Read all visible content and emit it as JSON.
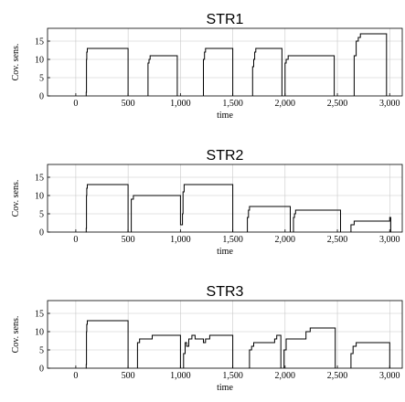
{
  "chart_data": [
    {
      "type": "line",
      "title": "STR1",
      "xlabel": "time",
      "ylabel": "Cov. sens.",
      "xlim": [
        -270,
        3120
      ],
      "ylim": [
        0,
        18.5
      ],
      "xticks": [
        0,
        500,
        1000,
        1500,
        2000,
        2500,
        3000
      ],
      "xtick_labels": [
        "0",
        "500",
        "1,000",
        "1,500",
        "2,000",
        "2,500",
        "3,000"
      ],
      "yticks": [
        0,
        5,
        10,
        15
      ],
      "ytick_labels": [
        "0",
        "5",
        "10",
        "15"
      ],
      "grid": true,
      "segments": [
        [
          [
            95,
            0
          ],
          [
            100,
            1
          ],
          [
            102,
            10
          ],
          [
            105,
            12
          ],
          [
            110,
            13
          ],
          [
            500,
            13
          ],
          [
            500,
            0
          ]
        ],
        [
          [
            690,
            0
          ],
          [
            690,
            9
          ],
          [
            700,
            10
          ],
          [
            710,
            11
          ],
          [
            970,
            11
          ],
          [
            970,
            0
          ]
        ],
        [
          [
            1220,
            0
          ],
          [
            1220,
            10
          ],
          [
            1230,
            12
          ],
          [
            1240,
            13
          ],
          [
            1500,
            13
          ],
          [
            1500,
            0
          ]
        ],
        [
          [
            1690,
            0
          ],
          [
            1690,
            8
          ],
          [
            1700,
            10
          ],
          [
            1710,
            12
          ],
          [
            1720,
            13
          ],
          [
            1970,
            13
          ],
          [
            1970,
            0
          ]
        ],
        [
          [
            2000,
            0
          ],
          [
            2000,
            9
          ],
          [
            2010,
            10
          ],
          [
            2030,
            11
          ],
          [
            2470,
            11
          ],
          [
            2470,
            0
          ]
        ],
        [
          [
            2660,
            0
          ],
          [
            2660,
            11
          ],
          [
            2680,
            15
          ],
          [
            2700,
            16
          ],
          [
            2720,
            17
          ],
          [
            2970,
            17
          ],
          [
            2970,
            0
          ]
        ]
      ]
    },
    {
      "type": "line",
      "title": "STR2",
      "xlabel": "time",
      "ylabel": "Cov. sens.",
      "xlim": [
        -270,
        3120
      ],
      "ylim": [
        0,
        18.5
      ],
      "xticks": [
        0,
        500,
        1000,
        1500,
        2000,
        2500,
        3000
      ],
      "xtick_labels": [
        "0",
        "500",
        "1,000",
        "1,500",
        "2,000",
        "2,500",
        "3,000"
      ],
      "yticks": [
        0,
        5,
        10,
        15
      ],
      "ytick_labels": [
        "0",
        "5",
        "10",
        "15"
      ],
      "grid": true,
      "segments": [
        [
          [
            95,
            0
          ],
          [
            100,
            1
          ],
          [
            102,
            10
          ],
          [
            105,
            12
          ],
          [
            110,
            13
          ],
          [
            500,
            13
          ],
          [
            500,
            0
          ]
        ],
        [
          [
            530,
            0
          ],
          [
            530,
            9
          ],
          [
            550,
            10
          ],
          [
            1000,
            10
          ],
          [
            1000,
            2
          ],
          [
            1020,
            5
          ],
          [
            1025,
            11
          ],
          [
            1035,
            13
          ],
          [
            1500,
            13
          ],
          [
            1500,
            0
          ]
        ],
        [
          [
            1640,
            0
          ],
          [
            1640,
            4
          ],
          [
            1650,
            6
          ],
          [
            1660,
            7
          ],
          [
            2050,
            7
          ],
          [
            2050,
            0
          ]
        ],
        [
          [
            2080,
            0
          ],
          [
            2080,
            4
          ],
          [
            2090,
            5
          ],
          [
            2100,
            6
          ],
          [
            2530,
            6
          ],
          [
            2530,
            0
          ]
        ],
        [
          [
            2630,
            0
          ],
          [
            2630,
            2
          ],
          [
            2660,
            3
          ],
          [
            3000,
            3
          ],
          [
            3000,
            4
          ],
          [
            3010,
            0
          ]
        ]
      ]
    },
    {
      "type": "line",
      "title": "STR3",
      "xlabel": "time",
      "ylabel": "Cov. sens.",
      "xlim": [
        -270,
        3120
      ],
      "ylim": [
        0,
        18.5
      ],
      "xticks": [
        0,
        500,
        1000,
        1500,
        2000,
        2500,
        3000
      ],
      "xtick_labels": [
        "0",
        "500",
        "1,000",
        "1,500",
        "2,000",
        "2,500",
        "3,000"
      ],
      "yticks": [
        0,
        5,
        10,
        15
      ],
      "ytick_labels": [
        "0",
        "5",
        "10",
        "15"
      ],
      "grid": true,
      "segments": [
        [
          [
            95,
            0
          ],
          [
            100,
            1
          ],
          [
            102,
            10
          ],
          [
            105,
            12
          ],
          [
            110,
            13
          ],
          [
            500,
            13
          ],
          [
            500,
            0
          ]
        ],
        [
          [
            590,
            0
          ],
          [
            590,
            7
          ],
          [
            610,
            8
          ],
          [
            730,
            8
          ],
          [
            730,
            9
          ],
          [
            1000,
            9
          ],
          [
            1000,
            0
          ]
        ],
        [
          [
            1030,
            0
          ],
          [
            1030,
            4
          ],
          [
            1045,
            7
          ],
          [
            1060,
            6
          ],
          [
            1080,
            8
          ],
          [
            1110,
            9
          ],
          [
            1140,
            8
          ],
          [
            1200,
            8
          ],
          [
            1220,
            7
          ],
          [
            1240,
            8
          ],
          [
            1270,
            8
          ],
          [
            1280,
            9
          ],
          [
            1500,
            9
          ],
          [
            1500,
            0
          ]
        ],
        [
          [
            1660,
            0
          ],
          [
            1660,
            5
          ],
          [
            1680,
            6
          ],
          [
            1700,
            7
          ],
          [
            1900,
            7
          ],
          [
            1900,
            8
          ],
          [
            1920,
            9
          ],
          [
            1960,
            9
          ],
          [
            1960,
            0
          ]
        ],
        [
          [
            1990,
            0
          ],
          [
            1990,
            5
          ],
          [
            2010,
            8
          ],
          [
            2200,
            8
          ],
          [
            2200,
            10
          ],
          [
            2240,
            11
          ],
          [
            2480,
            11
          ],
          [
            2480,
            0
          ]
        ],
        [
          [
            2630,
            0
          ],
          [
            2630,
            4
          ],
          [
            2650,
            6
          ],
          [
            2680,
            7
          ],
          [
            3000,
            7
          ],
          [
            3000,
            0
          ]
        ]
      ]
    }
  ]
}
